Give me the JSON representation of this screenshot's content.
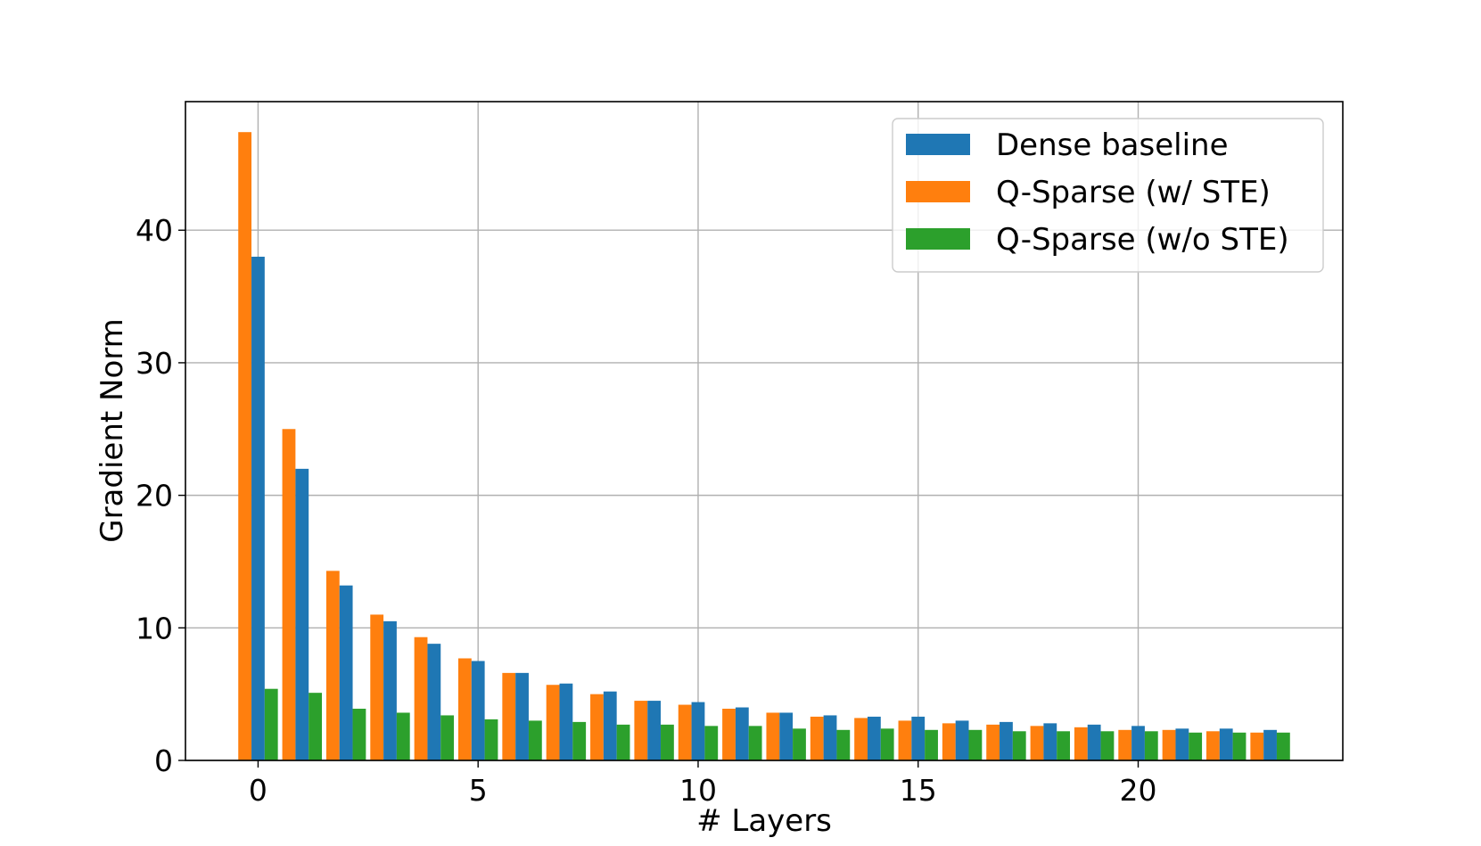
{
  "chart_data": {
    "type": "bar",
    "title": "",
    "xlabel": "# Layers",
    "ylabel": "Gradient Norm",
    "xlim": [
      -1.65,
      24.65
    ],
    "ylim": [
      0,
      49.7
    ],
    "xticks": [
      0,
      5,
      10,
      15,
      20
    ],
    "yticks": [
      0,
      10,
      20,
      30,
      40
    ],
    "grid": true,
    "legend_position": "top-right",
    "x": [
      0,
      1,
      2,
      3,
      4,
      5,
      6,
      7,
      8,
      9,
      10,
      11,
      12,
      13,
      14,
      15,
      16,
      17,
      18,
      19,
      20,
      21,
      22,
      23
    ],
    "series": [
      {
        "name": "Dense baseline",
        "color": "#1f77b4",
        "values": [
          38.0,
          22.0,
          13.2,
          10.5,
          8.8,
          7.5,
          6.6,
          5.8,
          5.2,
          4.5,
          4.4,
          4.0,
          3.6,
          3.4,
          3.3,
          3.3,
          3.0,
          2.9,
          2.8,
          2.7,
          2.6,
          2.4,
          2.4,
          2.3
        ]
      },
      {
        "name": "Q-Sparse (w/ STE)",
        "color": "#ff7f0e",
        "values": [
          47.4,
          25.0,
          14.3,
          11.0,
          9.3,
          7.7,
          6.6,
          5.7,
          5.0,
          4.5,
          4.2,
          3.9,
          3.6,
          3.3,
          3.2,
          3.0,
          2.8,
          2.7,
          2.6,
          2.5,
          2.3,
          2.3,
          2.2,
          2.1
        ]
      },
      {
        "name": "Q-Sparse (w/o STE)",
        "color": "#2ca02c",
        "values": [
          5.4,
          5.1,
          3.9,
          3.6,
          3.4,
          3.1,
          3.0,
          2.9,
          2.7,
          2.7,
          2.6,
          2.6,
          2.4,
          2.3,
          2.4,
          2.3,
          2.3,
          2.2,
          2.2,
          2.2,
          2.2,
          2.1,
          2.1,
          2.1
        ]
      }
    ],
    "series_order_in_group": [
      "Q-Sparse (w/ STE)",
      "Dense baseline",
      "Q-Sparse (w/o STE)"
    ]
  }
}
